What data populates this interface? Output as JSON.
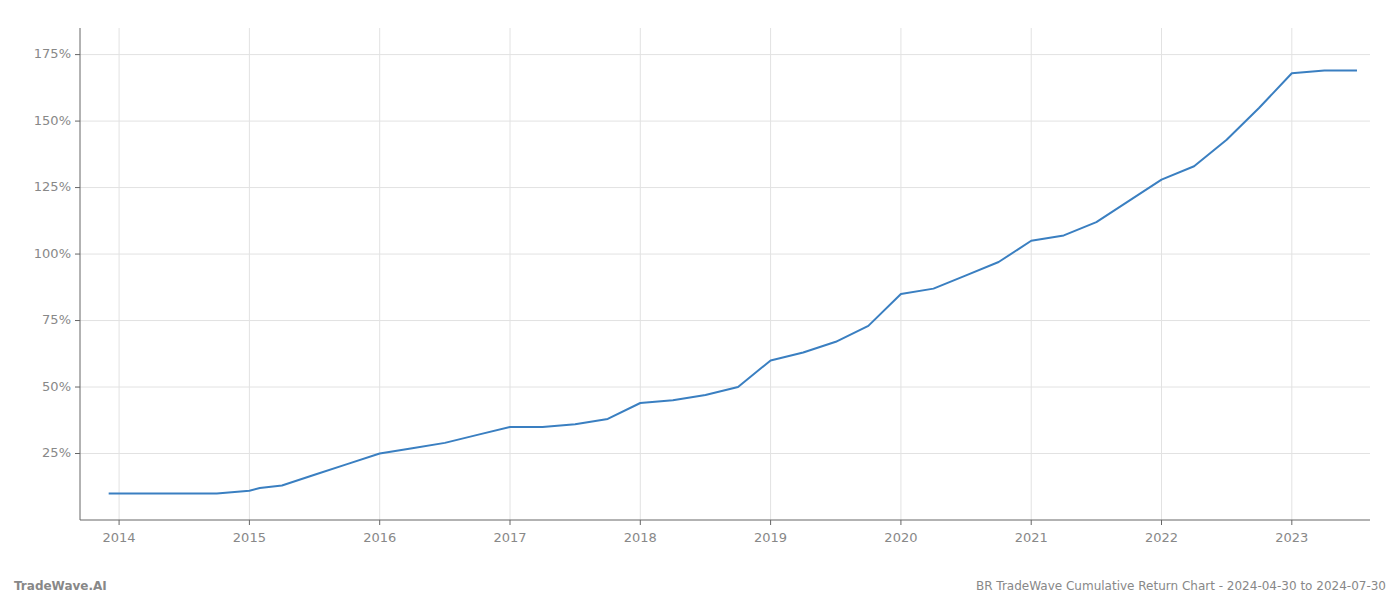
{
  "chart_data": {
    "type": "line",
    "x": [
      2013.92,
      2014.0,
      2014.25,
      2014.5,
      2014.75,
      2015.0,
      2015.08,
      2015.25,
      2015.5,
      2015.75,
      2016.0,
      2016.25,
      2016.5,
      2016.75,
      2017.0,
      2017.25,
      2017.5,
      2017.75,
      2018.0,
      2018.25,
      2018.5,
      2018.75,
      2019.0,
      2019.25,
      2019.5,
      2019.75,
      2020.0,
      2020.25,
      2020.5,
      2020.75,
      2021.0,
      2021.25,
      2021.5,
      2021.75,
      2022.0,
      2022.25,
      2022.5,
      2022.75,
      2023.0,
      2023.25,
      2023.5
    ],
    "values": [
      10,
      10,
      10,
      10,
      10,
      11,
      12,
      13,
      17,
      21,
      25,
      27,
      29,
      32,
      35,
      35,
      36,
      38,
      44,
      45,
      47,
      50,
      60,
      63,
      67,
      73,
      85,
      87,
      92,
      97,
      105,
      107,
      112,
      120,
      128,
      133,
      143,
      155,
      168,
      169,
      169
    ],
    "color": "#3a7fc1",
    "xlim": [
      2013.7,
      2023.6
    ],
    "xticks": [
      2014,
      2015,
      2016,
      2017,
      2018,
      2019,
      2020,
      2021,
      2022,
      2023
    ],
    "ylim": [
      0,
      185
    ],
    "yticks": [
      {
        "value": 25,
        "label": "25%"
      },
      {
        "value": 50,
        "label": "50%"
      },
      {
        "value": 75,
        "label": "75%"
      },
      {
        "value": 100,
        "label": "100%"
      },
      {
        "value": 125,
        "label": "125%"
      },
      {
        "value": 150,
        "label": "150%"
      },
      {
        "value": 175,
        "label": "175%"
      }
    ],
    "grid": true,
    "annotations": [
      "TradeWave.AI",
      "BR TradeWave Cumulative Return Chart - 2024-04-30 to 2024-07-30"
    ]
  }
}
